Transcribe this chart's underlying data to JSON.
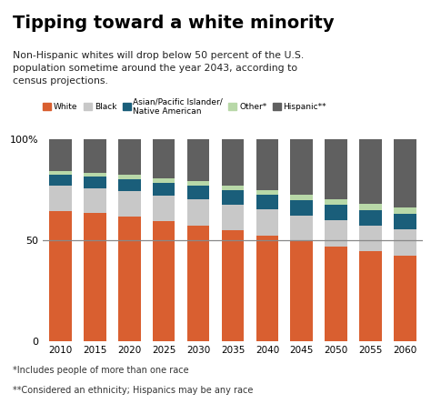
{
  "title": "Tipping toward a white minority",
  "subtitle": "Non-Hispanic whites will drop below 50 percent of the U.S.\npopulation sometime around the year 2043, according to\ncensus projections.",
  "footnote1": "*Includes people of more than one race",
  "footnote2": "**Considered an ethnicity; Hispanics may be any race",
  "years": [
    2010,
    2015,
    2020,
    2025,
    2030,
    2035,
    2040,
    2045,
    2050,
    2055,
    2060
  ],
  "white": [
    64.7,
    63.4,
    61.8,
    59.5,
    57.5,
    55.0,
    52.5,
    49.5,
    47.0,
    44.5,
    42.5
  ],
  "black": [
    12.2,
    12.4,
    12.5,
    12.6,
    12.7,
    12.8,
    12.8,
    12.9,
    13.0,
    13.0,
    13.0
  ],
  "asian": [
    5.6,
    5.8,
    6.1,
    6.5,
    6.8,
    7.1,
    7.2,
    7.4,
    7.5,
    7.6,
    7.7
  ],
  "other": [
    2.0,
    2.0,
    2.1,
    2.1,
    2.2,
    2.3,
    2.5,
    2.7,
    2.8,
    3.0,
    3.2
  ],
  "hispanic": [
    15.5,
    16.4,
    17.5,
    19.3,
    20.8,
    22.8,
    25.0,
    27.5,
    29.7,
    31.9,
    33.6
  ],
  "colors": {
    "white": "#d95f30",
    "black": "#c8c8c8",
    "asian": "#1a5e7a",
    "other": "#b8d8a8",
    "hispanic": "#606060"
  },
  "ylim": [
    0,
    100
  ],
  "yticks": [
    0,
    50,
    100
  ],
  "yticklabels": [
    "0",
    "50",
    "100%"
  ],
  "hline_y": 50,
  "bar_width": 0.65,
  "bg_color": "#ffffff"
}
